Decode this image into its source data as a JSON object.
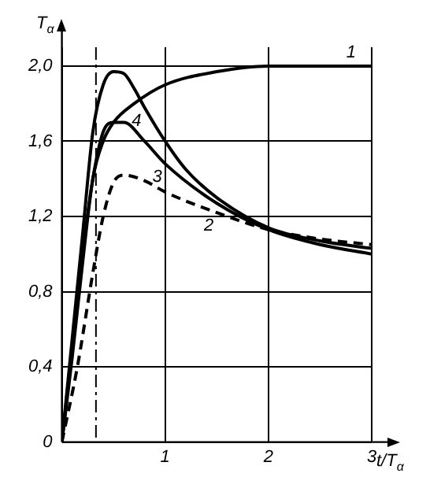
{
  "chart_data": {
    "type": "line",
    "xlabel": "t/T$_{α}$",
    "ylabel": "T$_{α}$",
    "xlim": [
      0,
      3
    ],
    "ylim": [
      0,
      2.1
    ],
    "xticks": [
      {
        "value": 0,
        "label": null
      },
      1,
      2,
      3
    ],
    "yticks": [
      0,
      {
        "value": 0.4,
        "label": "0,4"
      },
      {
        "value": 0.8,
        "label": "0,8"
      },
      {
        "value": 1.2,
        "label": "1,2"
      },
      {
        "value": 1.6,
        "label": "1,6"
      },
      {
        "value": 2.0,
        "label": "2,0"
      }
    ],
    "grid": true,
    "marker": "none",
    "legend": false,
    "ref_lines": [
      {
        "axis": "x",
        "value": 0.33,
        "line_style": "dashed",
        "color": "#000000"
      }
    ],
    "series": [
      {
        "name": "1",
        "color": "#000000",
        "line_style": "solid",
        "x": [
          0,
          0.1,
          0.2,
          0.3,
          0.4,
          0.5,
          0.7,
          1.0,
          1.5,
          2.0,
          2.5,
          3.0
        ],
        "values": [
          0,
          0.45,
          0.95,
          1.4,
          1.6,
          1.7,
          1.8,
          1.9,
          1.97,
          2.0,
          2.0,
          2.0
        ]
      },
      {
        "name": "2",
        "color": "#000000",
        "line_style": "dashed",
        "x": [
          0,
          0.15,
          0.3,
          0.4,
          0.5,
          0.6,
          0.8,
          1.0,
          1.5,
          2.0,
          2.5,
          3.0
        ],
        "values": [
          0,
          0.4,
          0.9,
          1.2,
          1.38,
          1.42,
          1.39,
          1.33,
          1.22,
          1.13,
          1.08,
          1.05
        ]
      },
      {
        "name": "3",
        "color": "#000000",
        "line_style": "solid",
        "x": [
          0,
          0.1,
          0.2,
          0.3,
          0.4,
          0.5,
          0.6,
          0.8,
          1.0,
          1.5,
          2.0,
          2.5,
          3.0
        ],
        "values": [
          0,
          0.5,
          1.0,
          1.4,
          1.65,
          1.7,
          1.7,
          1.6,
          1.48,
          1.27,
          1.13,
          1.05,
          1.0
        ]
      },
      {
        "name": "4",
        "color": "#000000",
        "line_style": "solid",
        "x": [
          0,
          0.1,
          0.2,
          0.3,
          0.4,
          0.5,
          0.6,
          0.7,
          0.8,
          1.0,
          1.2,
          1.5,
          2.0,
          2.5,
          3.0
        ],
        "values": [
          0,
          0.55,
          1.1,
          1.65,
          1.9,
          1.97,
          1.96,
          1.88,
          1.78,
          1.6,
          1.45,
          1.3,
          1.14,
          1.07,
          1.03
        ]
      }
    ]
  }
}
